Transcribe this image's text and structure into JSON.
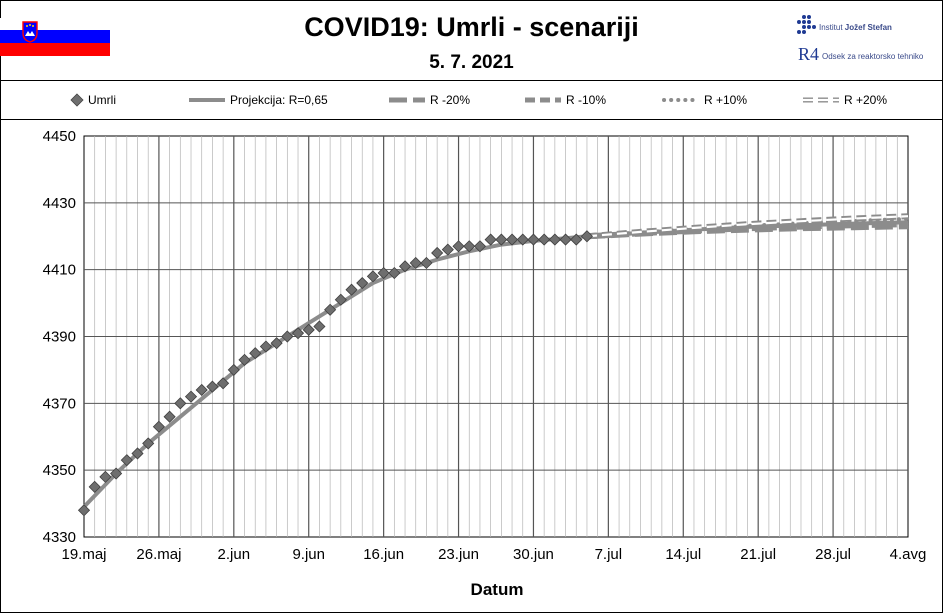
{
  "header": {
    "title": "COVID19: Umrli - scenariji",
    "date": "5. 7. 2021",
    "logo_ijs_prefix": "Institut ",
    "logo_ijs_name": "Jožef Stefan",
    "logo_r4_mark": "R4",
    "logo_r4_text": "Odsek za reaktorsko tehniko"
  },
  "colors": {
    "flag_white": "#ffffff",
    "flag_blue": "#0000ff",
    "flag_red": "#ff0000",
    "series": "#8c8c8c",
    "marker": "#6e6e6e",
    "grid_minor": "#b4b4b4",
    "grid_major": "#555555"
  },
  "legend": [
    {
      "label": "Umrli",
      "style": "marker"
    },
    {
      "label": "Projekcija: R=0,65",
      "style": "solid"
    },
    {
      "label": "R -20%",
      "style": "long-dash"
    },
    {
      "label": "R -10%",
      "style": "dash"
    },
    {
      "label": "R +10%",
      "style": "dot"
    },
    {
      "label": "R +20%",
      "style": "hollow-dash"
    }
  ],
  "chart_data": {
    "type": "line",
    "title": "COVID19: Umrli - scenariji",
    "subtitle": "5. 7. 2021",
    "xlabel": "Datum",
    "ylabel": "",
    "ylim": [
      4330,
      4450
    ],
    "yticks": [
      4330,
      4350,
      4370,
      4390,
      4410,
      4430,
      4450
    ],
    "xlim_days": [
      0,
      77
    ],
    "xticks": [
      {
        "label": "19.maj",
        "day": 0
      },
      {
        "label": "26.maj",
        "day": 7
      },
      {
        "label": "2.jun",
        "day": 14
      },
      {
        "label": "9.jun",
        "day": 21
      },
      {
        "label": "16.jun",
        "day": 28
      },
      {
        "label": "23.jun",
        "day": 35
      },
      {
        "label": "30.jun",
        "day": 42
      },
      {
        "label": "7.jul",
        "day": 49
      },
      {
        "label": "14.jul",
        "day": 56
      },
      {
        "label": "21.jul",
        "day": 63
      },
      {
        "label": "28.jul",
        "day": 70
      },
      {
        "label": "4.avg",
        "day": 77
      }
    ],
    "grid": "on",
    "legend_position": "top",
    "observed": {
      "name": "Umrli",
      "day": [
        0,
        1,
        2,
        3,
        4,
        5,
        6,
        7,
        8,
        9,
        10,
        11,
        12,
        13,
        14,
        15,
        16,
        17,
        18,
        19,
        20,
        21,
        22,
        23,
        24,
        25,
        26,
        27,
        28,
        29,
        30,
        31,
        32,
        33,
        34,
        35,
        36,
        37,
        38,
        39,
        40,
        41,
        42,
        43,
        44,
        45,
        46,
        47
      ],
      "values": [
        4338,
        4345,
        4348,
        4349,
        4353,
        4355,
        4358,
        4363,
        4366,
        4370,
        4372,
        4374,
        4375,
        4376,
        4380,
        4383,
        4385,
        4387,
        4388,
        4390,
        4391,
        4392,
        4393,
        4398,
        4401,
        4404,
        4406,
        4408,
        4409,
        4409,
        4411,
        4412,
        4412,
        4415,
        4416,
        4417,
        4417,
        4417,
        4419,
        4419,
        4419,
        4419,
        4419,
        4419,
        4419,
        4419,
        4419,
        4420
      ]
    },
    "projection_start_day": 47,
    "series": [
      {
        "name": "Projekcija: R=0,65",
        "day": [
          47,
          52,
          57,
          62,
          67,
          72,
          77
        ],
        "values": [
          4420,
          4421,
          4422,
          4422.8,
          4423.3,
          4423.8,
          4424.2
        ]
      },
      {
        "name": "R -20%",
        "day": [
          47,
          52,
          57,
          62,
          67,
          72,
          77
        ],
        "values": [
          4420,
          4420.8,
          4421.5,
          4422.0,
          4422.4,
          4422.7,
          4423.0
        ]
      },
      {
        "name": "R -10%",
        "day": [
          47,
          52,
          57,
          62,
          67,
          72,
          77
        ],
        "values": [
          4420,
          4420.9,
          4421.7,
          4422.4,
          4422.9,
          4423.3,
          4423.6
        ]
      },
      {
        "name": "R +10%",
        "day": [
          47,
          52,
          57,
          62,
          67,
          72,
          77
        ],
        "values": [
          4420,
          4421.1,
          4422.2,
          4423.1,
          4423.9,
          4424.6,
          4425.2
        ]
      },
      {
        "name": "R +20%",
        "day": [
          47,
          52,
          57,
          62,
          67,
          72,
          77
        ],
        "values": [
          4420,
          4421.3,
          4422.5,
          4423.6,
          4424.5,
          4425.3,
          4426.0
        ]
      }
    ],
    "fit_curve": {
      "name": "Projekcija: R=0,65",
      "day": [
        0,
        3,
        6,
        9,
        12,
        15,
        18,
        21,
        24,
        27,
        30,
        33,
        36,
        39,
        42,
        45,
        47
      ],
      "values": [
        4339,
        4349,
        4358,
        4366,
        4374,
        4382,
        4388,
        4394,
        4400,
        4406,
        4410,
        4413,
        4415.5,
        4417.5,
        4418.6,
        4419.4,
        4420
      ]
    }
  }
}
